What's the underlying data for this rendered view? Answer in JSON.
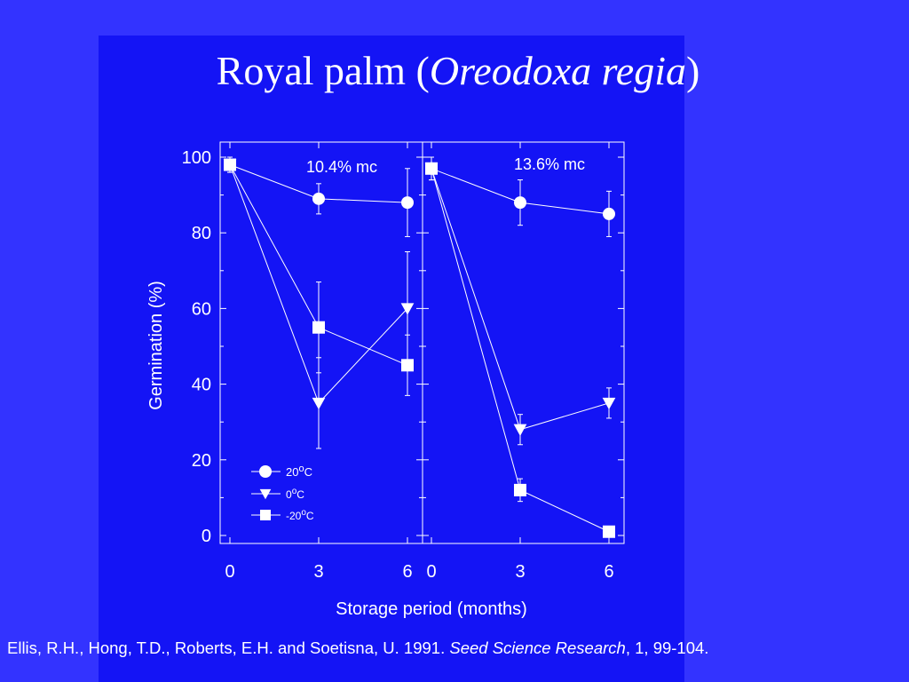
{
  "slide": {
    "title_prefix": "Royal palm (",
    "title_species": "Oreodoxa regia",
    "title_suffix": ")",
    "background_color": "#3333ff",
    "panel_color": "#1414f5"
  },
  "citation": {
    "authors": "Ellis, R.H., Hong, T.D., Roberts, E.H. and Soetisna, U. 1991. ",
    "journal": "Seed Science Research",
    "details": ", 1, 99-104."
  },
  "chart_data": {
    "type": "line",
    "xlabel": "Storage period (months)",
    "ylabel": "Germination (%)",
    "ylim": [
      0,
      100
    ],
    "yticks": [
      0,
      20,
      40,
      60,
      80,
      100
    ],
    "xticks": [
      0,
      3,
      6
    ],
    "legend": {
      "placement": "bottom-left of left panel",
      "entries": [
        {
          "marker": "circle",
          "base": "20",
          "sup": "o",
          "unit": "C"
        },
        {
          "marker": "triangle-down",
          "base": "0",
          "sup": "o",
          "unit": "C"
        },
        {
          "marker": "square",
          "base": "-20",
          "sup": "o",
          "unit": "C"
        }
      ]
    },
    "panels": [
      {
        "label": "10.4% mc",
        "x": [
          0,
          3,
          6
        ],
        "series": [
          {
            "marker": "circle",
            "values": [
              98,
              89,
              88
            ],
            "err": [
              2,
              4,
              9
            ]
          },
          {
            "marker": "triangle-down",
            "values": [
              98,
              35,
              60
            ],
            "err": [
              2,
              12,
              15
            ]
          },
          {
            "marker": "square",
            "values": [
              98,
              55,
              45
            ],
            "err": [
              2,
              12,
              8
            ]
          }
        ]
      },
      {
        "label": "13.6% mc",
        "x": [
          0,
          3,
          6
        ],
        "series": [
          {
            "marker": "circle",
            "values": [
              97,
              88,
              85
            ],
            "err": [
              3,
              6,
              6
            ]
          },
          {
            "marker": "triangle-down",
            "values": [
              97,
              28,
              35
            ],
            "err": [
              3,
              4,
              4
            ]
          },
          {
            "marker": "square",
            "values": [
              97,
              12,
              1
            ],
            "err": [
              3,
              3,
              1
            ]
          }
        ]
      }
    ]
  }
}
